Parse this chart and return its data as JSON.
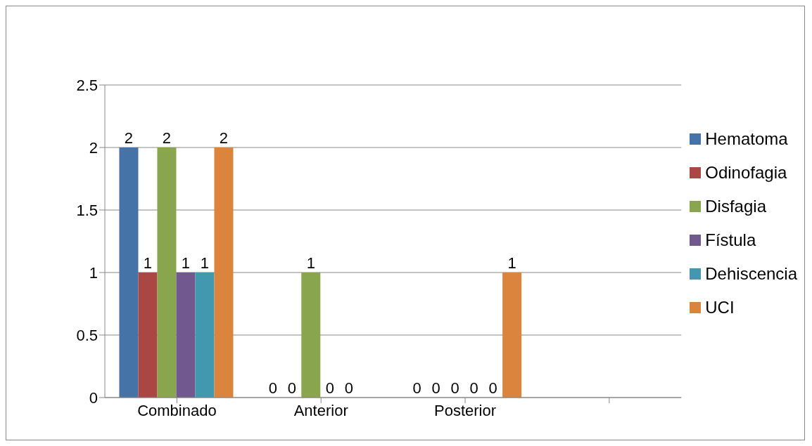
{
  "chart_data": {
    "type": "bar",
    "categories": [
      "Combinado",
      "Anterior",
      "Posterior",
      null
    ],
    "series": [
      {
        "name": "Hematoma",
        "color": "#4572a7",
        "values": [
          2,
          0,
          0,
          null
        ]
      },
      {
        "name": "Odinofagia",
        "color": "#aa4643",
        "values": [
          1,
          0,
          0,
          null
        ]
      },
      {
        "name": "Disfagia",
        "color": "#89a54e",
        "values": [
          2,
          1,
          0,
          null
        ]
      },
      {
        "name": "Fístula",
        "color": "#71588f",
        "values": [
          1,
          0,
          0,
          null
        ]
      },
      {
        "name": "Dehiscencia",
        "color": "#4198af",
        "values": [
          1,
          0,
          0,
          null
        ]
      },
      {
        "name": "UCI",
        "color": "#db843d",
        "values": [
          2,
          null,
          1,
          null
        ]
      }
    ],
    "ylim": [
      0,
      2.5
    ],
    "yticks": [
      0,
      0.5,
      1,
      1.5,
      2,
      2.5
    ],
    "grid": "y",
    "legend": "right",
    "data_labels": true
  }
}
